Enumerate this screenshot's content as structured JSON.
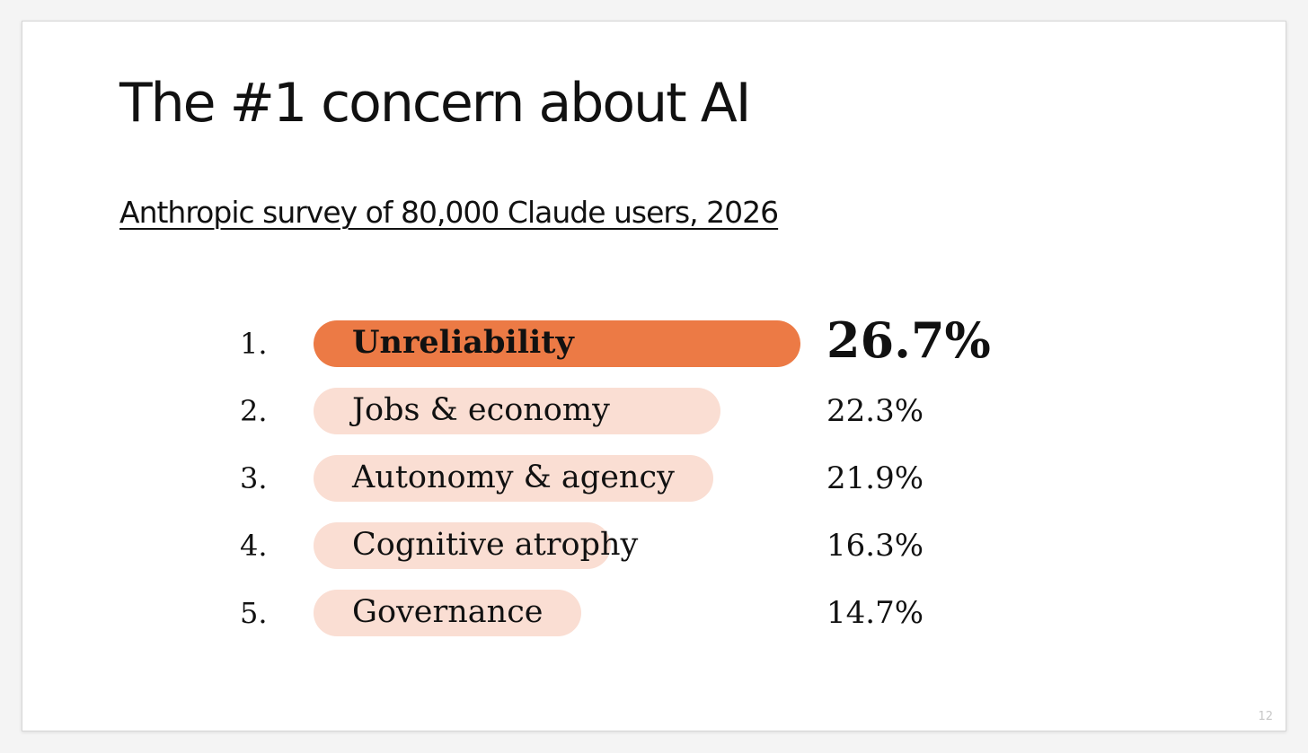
{
  "slide": {
    "title": "The #1 concern about AI",
    "subtitle": "Anthropic survey of 80,000 Claude users, 2026",
    "page_number": "12"
  },
  "colors": {
    "highlight_bar": "#EC7A45",
    "bar": "#FADED3",
    "text": "#111111"
  },
  "chart_data": {
    "type": "bar",
    "orientation": "horizontal",
    "unit": "%",
    "categories": [
      "Unreliability",
      "Jobs & economy",
      "Autonomy & agency",
      "Cognitive atrophy",
      "Governance"
    ],
    "values": [
      26.7,
      22.3,
      21.9,
      16.3,
      14.7
    ],
    "rank_labels": [
      "1.",
      "2.",
      "3.",
      "4.",
      "5."
    ],
    "value_labels": [
      "26.7%",
      "22.3%",
      "21.9%",
      "16.3%",
      "14.7%"
    ],
    "highlighted_index": 0
  }
}
